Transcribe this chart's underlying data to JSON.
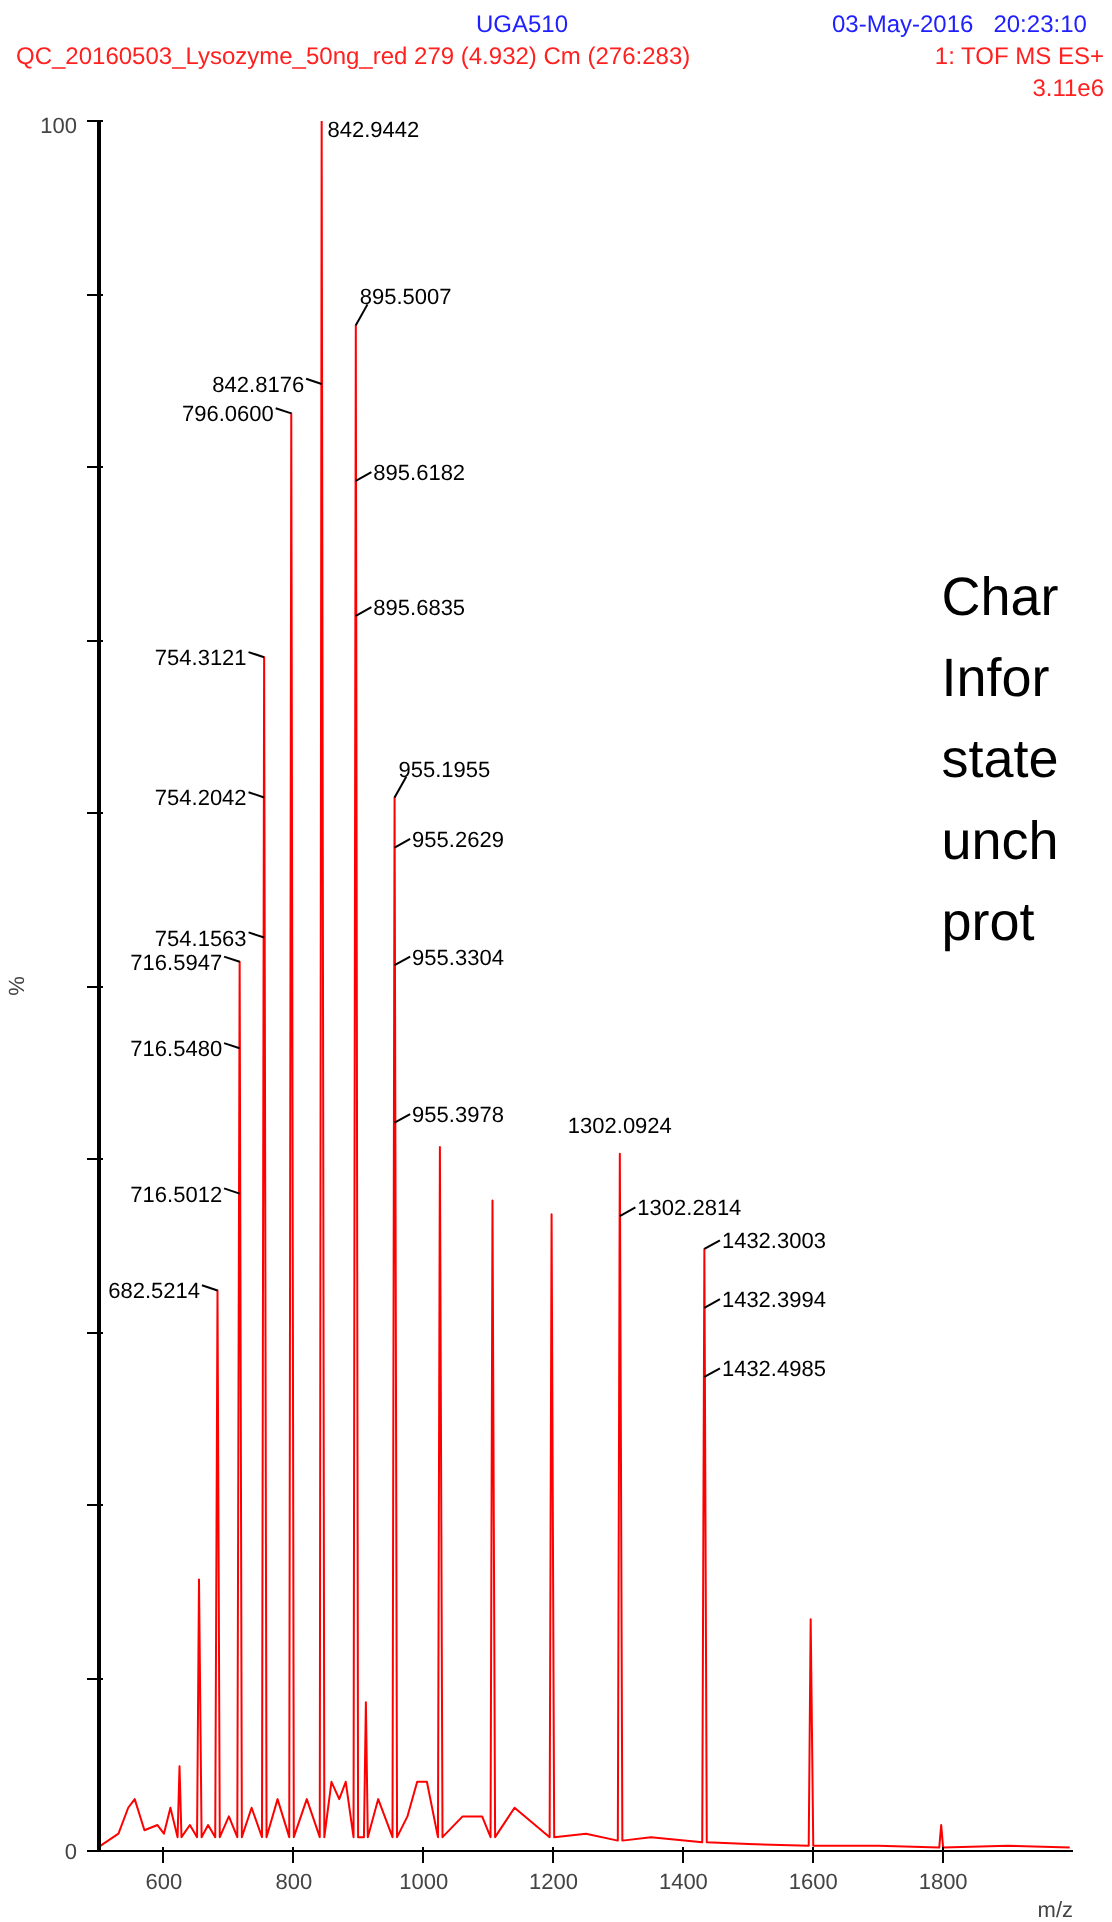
{
  "chart_data": {
    "type": "line",
    "title": "QC_20160503_Lysozyme_50ng_red 279 (4.932) Cm (276:283)",
    "xlabel": "m/z",
    "ylabel": "%",
    "series": [
      {
        "color": "#ff0000",
        "x": [
          502,
          530,
          545,
          555,
          570,
          590,
          600,
          610,
          621,
          624,
          627,
          640,
          651,
          654,
          658,
          668,
          679,
          682.5,
          686,
          700,
          713,
          716.6,
          720,
          735,
          751,
          754.3,
          758,
          775,
          793,
          796.1,
          800,
          820,
          840,
          842.9,
          847,
          858,
          870,
          880,
          892,
          895.5,
          899,
          908,
          911,
          914,
          930,
          952,
          955.2,
          959,
          975,
          990,
          1005,
          1022,
          1025,
          1029,
          1060,
          1090,
          1103,
          1106,
          1110,
          1140,
          1194,
          1197,
          1201,
          1250,
          1299,
          1302.1,
          1306,
          1350,
          1429,
          1432.3,
          1436,
          1500,
          1593,
          1596,
          1600,
          1700,
          1794,
          1797,
          1800,
          1900,
          1995
        ],
        "values": [
          0.3,
          1,
          2.5,
          3,
          1.2,
          1.5,
          1,
          2.5,
          0.8,
          4.9,
          0.8,
          1.5,
          0.8,
          15.7,
          0.8,
          1.5,
          0.8,
          32.4,
          0.8,
          2,
          0.8,
          51.4,
          0.8,
          2.5,
          0.8,
          69.0,
          0.8,
          3,
          0.8,
          83.1,
          0.8,
          3,
          0.8,
          100,
          0.8,
          4,
          3,
          4,
          0.8,
          88.2,
          0.8,
          0.8,
          8.6,
          0.8,
          3,
          0.8,
          60.9,
          0.8,
          2,
          4,
          4,
          0.8,
          40.7,
          0.8,
          2,
          2,
          0.8,
          37.6,
          0.8,
          2.5,
          0.8,
          36.8,
          0.8,
          1,
          0.6,
          40.3,
          0.6,
          0.8,
          0.5,
          34.8,
          0.5,
          0.4,
          0.3,
          13.4,
          0.3,
          0.3,
          0.2,
          1.5,
          0.2,
          0.3,
          0.2
        ]
      }
    ],
    "xlim": [
      500,
      2000
    ],
    "ylim": [
      0,
      100
    ],
    "xticks": [
      600,
      800,
      1000,
      1200,
      1400,
      1600,
      1800
    ],
    "yticks": [
      0,
      {
        "value": 10,
        "label": null
      },
      {
        "value": 20,
        "label": null
      },
      {
        "value": 30,
        "label": null
      },
      {
        "value": 40,
        "label": null
      },
      {
        "value": 50,
        "label": null
      },
      {
        "value": 60,
        "label": null
      },
      {
        "value": 70,
        "label": null
      },
      {
        "value": 80,
        "label": null
      },
      {
        "value": 90,
        "label": null
      },
      100
    ],
    "grid": false,
    "marker": "none",
    "line_style": "solid",
    "annotations": [
      "UGA510",
      "03-May-2016   20:23:10",
      "1: TOF MS ES+",
      "3.11e6",
      "Char\nInfor\nstate\nunch\nprot",
      {
        "text": "842.9442",
        "x": 842.9,
        "y": 100
      },
      {
        "text": "895.5007",
        "x": 895.5,
        "y": 88.2
      },
      {
        "text": "842.8176",
        "x": 842.9,
        "y": 84.8
      },
      {
        "text": "796.0600",
        "x": 796.1,
        "y": 83.1
      },
      {
        "text": "895.6182",
        "x": 895.5,
        "y": 79.2
      },
      {
        "text": "895.6835",
        "x": 895.5,
        "y": 71.4
      },
      {
        "text": "754.3121",
        "x": 754.3,
        "y": 69.0
      },
      {
        "text": "955.1955",
        "x": 955.2,
        "y": 60.9
      },
      {
        "text": "754.2042",
        "x": 754.3,
        "y": 60.9
      },
      {
        "text": "955.2629",
        "x": 955.2,
        "y": 58.0
      },
      {
        "text": "754.1563",
        "x": 754.3,
        "y": 52.8
      },
      {
        "text": "955.3304",
        "x": 955.2,
        "y": 51.2
      },
      {
        "text": "716.5947",
        "x": 716.6,
        "y": 51.4
      },
      {
        "text": "716.5480",
        "x": 716.6,
        "y": 46.4
      },
      {
        "text": "955.3978",
        "x": 955.2,
        "y": 42.1
      },
      {
        "text": "716.5012",
        "x": 716.6,
        "y": 38.0
      },
      {
        "text": "1302.0924",
        "x": 1302.1,
        "y": 40.3
      },
      {
        "text": "1302.2814",
        "x": 1302.1,
        "y": 36.7
      },
      {
        "text": "1432.3003",
        "x": 1432.3,
        "y": 34.8
      },
      {
        "text": "682.5214",
        "x": 682.5,
        "y": 32.4
      },
      {
        "text": "1432.3994",
        "x": 1432.3,
        "y": 31.4
      },
      {
        "text": "1432.4985",
        "x": 1432.3,
        "y": 27.4
      }
    ]
  }
}
